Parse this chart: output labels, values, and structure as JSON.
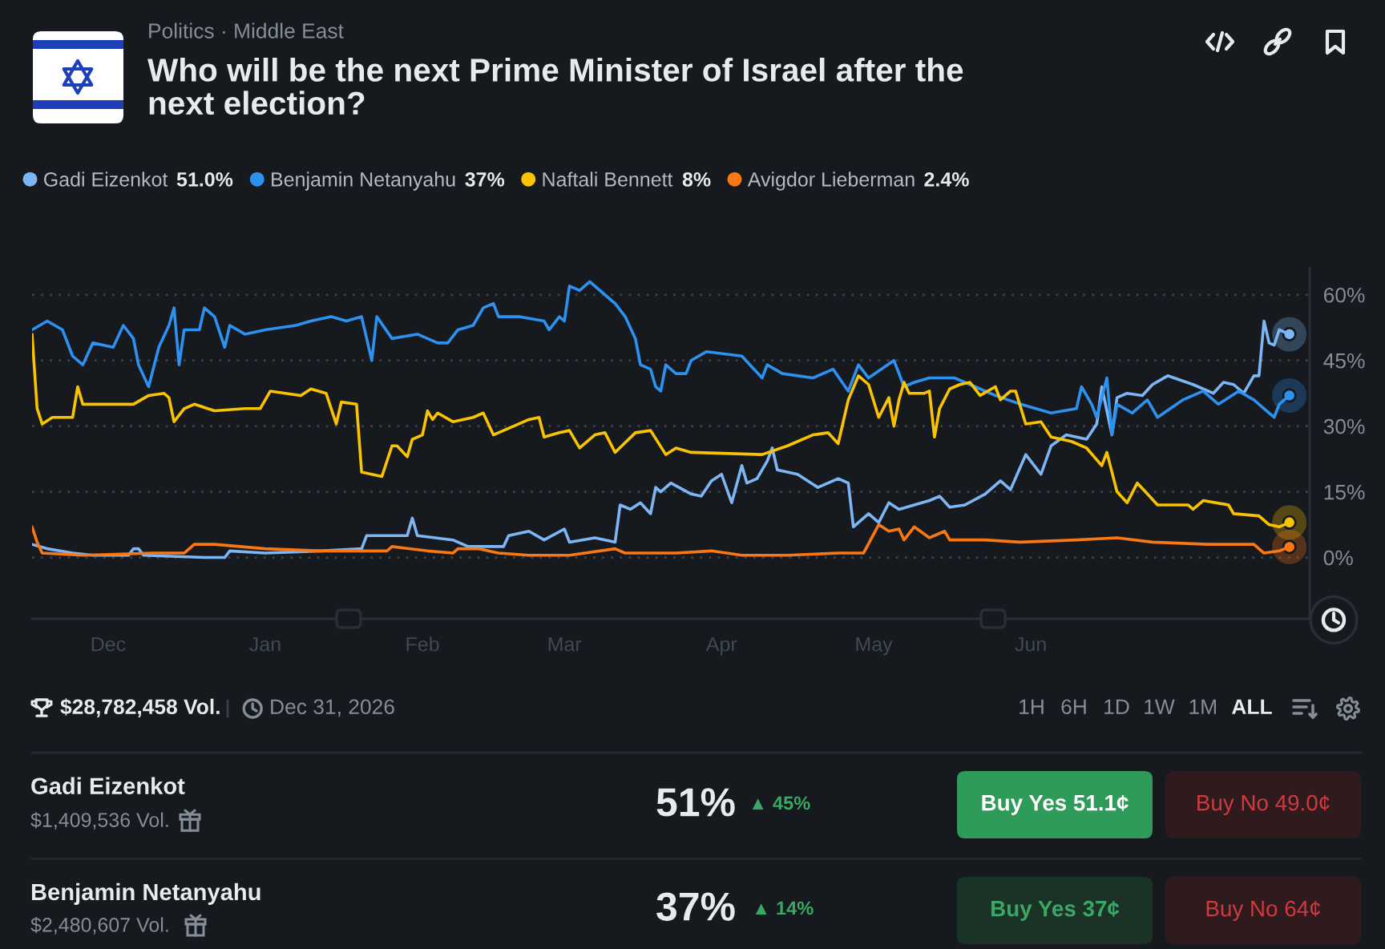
{
  "chart_data": {
    "type": "line",
    "title": "Who will be the next Prime Minister of Israel after the next election?",
    "annotations": [
      "Politics · Middle East",
      "51.0%",
      "37%",
      "8%",
      "2.4%",
      "$28,782,458 Vol.",
      "Dec 31, 2026",
      "1H",
      "6H",
      "1D",
      "1W",
      "1M",
      "ALL",
      "Gadi Eizenkot",
      "$1,409,536 Vol.",
      "51%",
      "▲ 45%",
      "Buy Yes 51.1¢",
      "Buy No 49.0¢",
      "Benjamin Netanyahu",
      "$2,480,607 Vol.",
      "37%",
      "▲ 14%",
      "Buy Yes 37¢",
      "Buy No 64¢"
    ],
    "xlim": [
      "2025-11-16",
      "2026-07-26"
    ],
    "xticks": [
      {
        "value": "2025-12-01",
        "label": "Dec"
      },
      {
        "value": "2026-01-01",
        "label": "Jan"
      },
      {
        "value": "2026-02-01",
        "label": "Feb"
      },
      {
        "value": "2026-03-01",
        "label": "Mar"
      },
      {
        "value": "2026-04-01",
        "label": "Apr"
      },
      {
        "value": "2026-05-01",
        "label": "May"
      },
      {
        "value": "2026-06-01",
        "label": "Jun"
      }
    ],
    "ylim": [
      -14,
      66
    ],
    "yticks": [
      {
        "value": 0,
        "label": "0%"
      },
      {
        "value": 15,
        "label": "15%"
      },
      {
        "value": 30,
        "label": "30%"
      },
      {
        "value": 45,
        "label": "45%"
      },
      {
        "value": 60,
        "label": "60%"
      }
    ],
    "grid": "y",
    "legend": "top left",
    "series": [
      {
        "name": "Gadi Eizenkot",
        "color": "#7cb6f5",
        "x": [
          "2025-11-16",
          "2025-11-19",
          "2025-11-24",
          "2025-11-28",
          "2025-12-05",
          "2025-12-06",
          "2025-12-07",
          "2025-12-08",
          "2025-12-20",
          "2025-12-24",
          "2025-12-25",
          "2026-01-01",
          "2026-01-12",
          "2026-01-20",
          "2026-01-21",
          "2026-01-24",
          "2026-01-29",
          "2026-01-30",
          "2026-01-31",
          "2026-02-07",
          "2026-02-10",
          "2026-02-17",
          "2026-02-18",
          "2026-02-22",
          "2026-02-25",
          "2026-03-01",
          "2026-03-02",
          "2026-03-07",
          "2026-03-11",
          "2026-03-12",
          "2026-03-14",
          "2026-03-16",
          "2026-03-18",
          "2026-03-19",
          "2026-03-20",
          "2026-03-22",
          "2026-03-26",
          "2026-03-28",
          "2026-03-30",
          "2026-04-01",
          "2026-04-03",
          "2026-04-05",
          "2026-04-06",
          "2026-04-08",
          "2026-04-10",
          "2026-04-11",
          "2026-04-12",
          "2026-04-16",
          "2026-04-20",
          "2026-04-24",
          "2026-04-26",
          "2026-04-27",
          "2026-04-30",
          "2026-05-02",
          "2026-05-04",
          "2026-05-06",
          "2026-05-09",
          "2026-05-12",
          "2026-05-14",
          "2026-05-16",
          "2026-05-19",
          "2026-05-23",
          "2026-05-26",
          "2026-05-28",
          "2026-05-31",
          "2026-06-03",
          "2026-06-05",
          "2026-06-08",
          "2026-06-12",
          "2026-06-14",
          "2026-06-15",
          "2026-06-17",
          "2026-06-18",
          "2026-06-20",
          "2026-06-23",
          "2026-06-25",
          "2026-06-28",
          "2026-07-03",
          "2026-07-07",
          "2026-07-09",
          "2026-07-11",
          "2026-07-13",
          "2026-07-15",
          "2026-07-16",
          "2026-07-17",
          "2026-07-18",
          "2026-07-19",
          "2026-07-20",
          "2026-07-22"
        ],
        "values": [
          3,
          2,
          1,
          0.5,
          0.5,
          2,
          2,
          0.5,
          0,
          0,
          1.5,
          1,
          1.5,
          2,
          5,
          5,
          5,
          9,
          5,
          4,
          2.5,
          2.5,
          5,
          6,
          4,
          6.5,
          3.5,
          4.5,
          3.5,
          12,
          11,
          12.5,
          10,
          16,
          15,
          17,
          14.5,
          14,
          17.5,
          19,
          12.5,
          21,
          17,
          18,
          22,
          25,
          20,
          19,
          16,
          18,
          17,
          7,
          10,
          8,
          12.5,
          11,
          12,
          13,
          14,
          11.5,
          12,
          14.5,
          17.5,
          15.5,
          23.5,
          19,
          25.5,
          28,
          27,
          30.5,
          39,
          28,
          36.5,
          37.5,
          37,
          39.5,
          41.5,
          39.5,
          37.5,
          40,
          39.5,
          37.5,
          41.5,
          41.5,
          54,
          49,
          48.5,
          52,
          51
        ]
      },
      {
        "name": "Benjamin Netanyahu",
        "color": "#2d91f0",
        "x": [
          "2025-11-16",
          "2025-11-19",
          "2025-11-22",
          "2025-11-24",
          "2025-11-26",
          "2025-11-28",
          "2025-12-02",
          "2025-12-04",
          "2025-12-06",
          "2025-12-07",
          "2025-12-09",
          "2025-12-11",
          "2025-12-13",
          "2025-12-14",
          "2025-12-15",
          "2025-12-16",
          "2025-12-19",
          "2025-12-20",
          "2025-12-22",
          "2025-12-24",
          "2025-12-25",
          "2025-12-28",
          "2026-01-01",
          "2026-01-07",
          "2026-01-10",
          "2026-01-14",
          "2026-01-17",
          "2026-01-20",
          "2026-01-22",
          "2026-01-23",
          "2026-01-26",
          "2026-01-31",
          "2026-02-04",
          "2026-02-06",
          "2026-02-08",
          "2026-02-11",
          "2026-02-13",
          "2026-02-15",
          "2026-02-16",
          "2026-02-20",
          "2026-02-25",
          "2026-02-26",
          "2026-02-28",
          "2026-03-01",
          "2026-03-02",
          "2026-03-04",
          "2026-03-06",
          "2026-03-08",
          "2026-03-11",
          "2026-03-13",
          "2026-03-15",
          "2026-03-16",
          "2026-03-18",
          "2026-03-19",
          "2026-03-20",
          "2026-03-21",
          "2026-03-23",
          "2026-03-25",
          "2026-03-26",
          "2026-03-29",
          "2026-04-05",
          "2026-04-09",
          "2026-04-10",
          "2026-04-13",
          "2026-04-19",
          "2026-04-23",
          "2026-04-26",
          "2026-04-28",
          "2026-04-30",
          "2026-05-05",
          "2026-05-07",
          "2026-05-09",
          "2026-05-12",
          "2026-05-17",
          "2026-05-21",
          "2026-05-25",
          "2026-05-30",
          "2026-06-05",
          "2026-06-10",
          "2026-06-11",
          "2026-06-13",
          "2026-06-14",
          "2026-06-16",
          "2026-06-17",
          "2026-06-18",
          "2026-06-21",
          "2026-06-24",
          "2026-06-26",
          "2026-07-01",
          "2026-07-05",
          "2026-07-08",
          "2026-07-12",
          "2026-07-15",
          "2026-07-17",
          "2026-07-19",
          "2026-07-20",
          "2026-07-22"
        ],
        "values": [
          52,
          54,
          52,
          46,
          44,
          49,
          48,
          53,
          50,
          44,
          39,
          48,
          53,
          57,
          44,
          52,
          52,
          57,
          55,
          48,
          53,
          51,
          52,
          53,
          54,
          55,
          54,
          55,
          45,
          55,
          50,
          51,
          49,
          49,
          52,
          53,
          57,
          58,
          55,
          55,
          54,
          52,
          55,
          54,
          62,
          61,
          63,
          61,
          58,
          55,
          50,
          44,
          43,
          39,
          38,
          44,
          42,
          42,
          45,
          47,
          46,
          41,
          44,
          42,
          41,
          43,
          38,
          44,
          41,
          45,
          39,
          40,
          41,
          41,
          39,
          37,
          35,
          33,
          34,
          39,
          35,
          32,
          41,
          28,
          35,
          33,
          36,
          32,
          36,
          38,
          35,
          38,
          36,
          34,
          32,
          35,
          37
        ]
      },
      {
        "name": "Naftali Bennett",
        "color": "#fac300",
        "x": [
          "2025-11-16",
          "2025-11-17",
          "2025-11-18",
          "2025-11-20",
          "2025-11-24",
          "2025-11-25",
          "2025-11-26",
          "2025-12-01",
          "2025-12-06",
          "2025-12-09",
          "2025-12-12",
          "2025-12-13",
          "2025-12-14",
          "2025-12-16",
          "2025-12-18",
          "2025-12-22",
          "2025-12-28",
          "2025-12-31",
          "2026-01-02",
          "2026-01-08",
          "2026-01-10",
          "2026-01-13",
          "2026-01-15",
          "2026-01-16",
          "2026-01-19",
          "2026-01-20",
          "2026-01-24",
          "2026-01-26",
          "2026-01-27",
          "2026-01-29",
          "2026-01-30",
          "2026-02-01",
          "2026-02-02",
          "2026-02-03",
          "2026-02-04",
          "2026-02-07",
          "2026-02-11",
          "2026-02-13",
          "2026-02-15",
          "2026-02-22",
          "2026-02-24",
          "2026-02-25",
          "2026-02-28",
          "2026-03-02",
          "2026-03-04",
          "2026-03-07",
          "2026-03-09",
          "2026-03-11",
          "2026-03-15",
          "2026-03-18",
          "2026-03-21",
          "2026-03-23",
          "2026-03-26",
          "2026-04-09",
          "2026-04-14",
          "2026-04-19",
          "2026-04-22",
          "2026-04-24",
          "2026-04-26",
          "2026-04-28",
          "2026-04-30",
          "2026-05-02",
          "2026-05-04",
          "2026-05-05",
          "2026-05-06",
          "2026-05-07",
          "2026-05-08",
          "2026-05-11",
          "2026-05-12",
          "2026-05-13",
          "2026-05-14",
          "2026-05-16",
          "2026-05-18",
          "2026-05-20",
          "2026-05-22",
          "2026-05-25",
          "2026-05-26",
          "2026-05-28",
          "2026-05-29",
          "2026-05-31",
          "2026-06-03",
          "2026-06-05",
          "2026-06-09",
          "2026-06-12",
          "2026-06-15",
          "2026-06-16",
          "2026-06-18",
          "2026-06-20",
          "2026-06-22",
          "2026-06-24",
          "2026-06-26",
          "2026-07-02",
          "2026-07-03",
          "2026-07-05",
          "2026-07-10",
          "2026-07-11",
          "2026-07-16",
          "2026-07-18",
          "2026-07-20",
          "2026-07-22"
        ],
        "values": [
          51,
          34,
          30.5,
          32,
          32,
          39,
          35,
          35,
          35,
          37,
          37.5,
          36.5,
          31,
          34,
          35,
          33.5,
          34,
          34,
          38,
          37,
          38.5,
          37.5,
          30.5,
          35.5,
          35,
          19.5,
          18.5,
          25.5,
          25.5,
          23,
          27,
          28,
          33.5,
          31.5,
          33,
          31,
          32,
          33,
          28,
          31.5,
          32,
          27.5,
          28.5,
          29,
          25,
          28,
          28.5,
          24,
          28.5,
          29,
          23.5,
          25,
          24,
          23.5,
          25.5,
          28,
          28.5,
          26,
          36,
          41.5,
          39.5,
          32,
          36.5,
          30,
          36,
          40,
          37.5,
          37.5,
          38,
          27.5,
          34,
          38.5,
          39.5,
          40,
          37,
          39,
          36,
          38,
          38,
          30.5,
          31,
          27.5,
          26.5,
          25,
          21,
          24,
          15,
          12.5,
          17,
          14.5,
          12,
          12,
          11,
          13,
          12,
          10,
          9.5,
          7.5,
          7,
          8
        ]
      },
      {
        "name": "Avigdor Lieberman",
        "color": "#fa7814",
        "x": [
          "2025-11-16",
          "2025-11-17",
          "2025-11-18",
          "2025-11-26",
          "2025-12-10",
          "2025-12-16",
          "2025-12-18",
          "2025-12-22",
          "2026-01-01",
          "2026-01-12",
          "2026-01-25",
          "2026-01-26",
          "2026-02-02",
          "2026-02-07",
          "2026-02-08",
          "2026-02-12",
          "2026-02-16",
          "2026-02-22",
          "2026-03-02",
          "2026-03-11",
          "2026-03-13",
          "2026-03-23",
          "2026-03-30",
          "2026-04-05",
          "2026-04-14",
          "2026-04-24",
          "2026-04-29",
          "2026-05-02",
          "2026-05-04",
          "2026-05-06",
          "2026-05-07",
          "2026-05-09",
          "2026-05-12",
          "2026-05-15",
          "2026-05-16",
          "2026-05-23",
          "2026-05-30",
          "2026-06-10",
          "2026-06-18",
          "2026-06-25",
          "2026-07-06",
          "2026-07-15",
          "2026-07-17",
          "2026-07-20",
          "2026-07-22"
        ],
        "values": [
          7,
          3.5,
          1,
          0.5,
          1,
          1,
          3,
          3,
          2,
          1.5,
          1.5,
          2.5,
          1.5,
          1,
          2,
          2,
          1,
          0.5,
          0.5,
          2,
          1,
          1,
          1.5,
          0.5,
          0.5,
          1,
          1,
          7.5,
          6,
          6.5,
          4,
          7,
          4.5,
          6,
          4,
          4,
          3.5,
          4,
          4.5,
          3.5,
          3,
          3,
          1,
          1.5,
          2.4
        ]
      },
      {
        "type": "scatter",
        "color": "#7cb6f5",
        "x": [
          "2026-07-22"
        ],
        "values": [
          51
        ]
      },
      {
        "type": "scatter",
        "color": "#2d91f0",
        "x": [
          "2026-07-22"
        ],
        "values": [
          37
        ]
      },
      {
        "type": "scatter",
        "color": "#fac300",
        "x": [
          "2026-07-22"
        ],
        "values": [
          8
        ]
      },
      {
        "type": "scatter",
        "color": "#fa7814",
        "x": [
          "2026-07-22"
        ],
        "values": [
          2.4
        ]
      }
    ]
  }
}
